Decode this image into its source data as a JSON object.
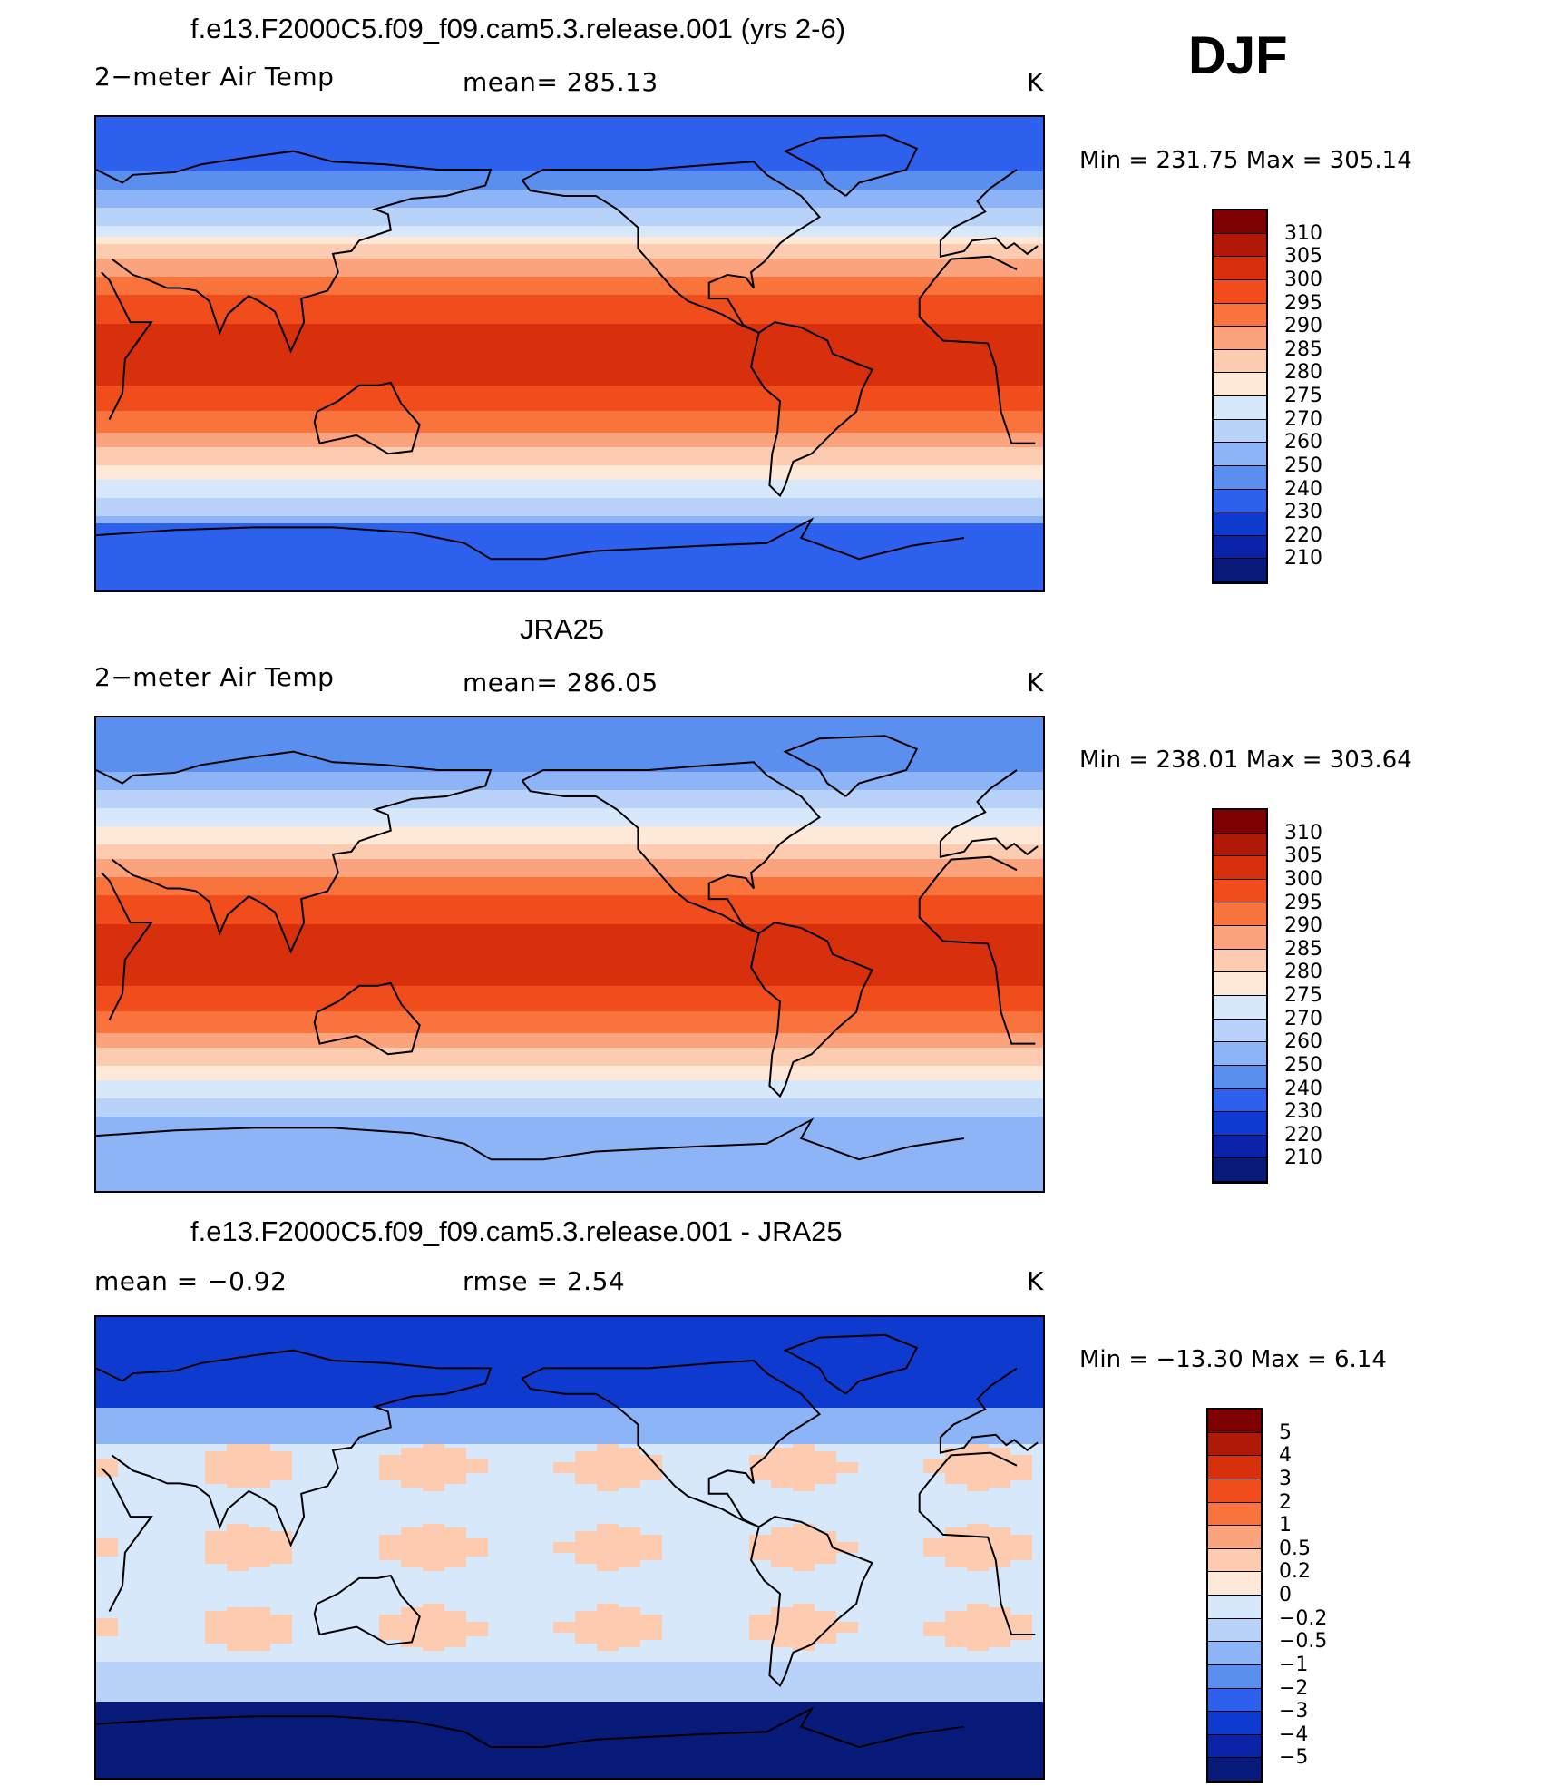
{
  "season": "DJF",
  "panels": [
    {
      "title": "f.e13.F2000C5.f09_f09.cam5.3.release.001 (yrs 2-6)",
      "left_label": "2−meter Air Temp",
      "center_label": "mean= 285.13",
      "units": "K",
      "minmax": "Min  =  231.75  Max  =  305.14",
      "colorbar": {
        "labels": [
          "310",
          "305",
          "300",
          "295",
          "290",
          "285",
          "280",
          "275",
          "270",
          "260",
          "250",
          "240",
          "230",
          "220",
          "210"
        ],
        "colors": [
          "#7f0000",
          "#b01808",
          "#d8300c",
          "#f04c1c",
          "#f8743c",
          "#fba37c",
          "#fdcbb0",
          "#fee8d8",
          "#d8e8fb",
          "#b8d2fa",
          "#8db4f6",
          "#5a8ff0",
          "#2d60ec",
          "#0f3ad0",
          "#0a23a8",
          "#081a7a"
        ]
      },
      "map_type": "model"
    },
    {
      "title": "JRA25",
      "left_label": "2−meter Air Temp",
      "center_label": "mean= 286.05",
      "units": "K",
      "minmax": "Min  =  238.01  Max  =  303.64",
      "colorbar": {
        "labels": [
          "310",
          "305",
          "300",
          "295",
          "290",
          "285",
          "280",
          "275",
          "270",
          "260",
          "250",
          "240",
          "230",
          "220",
          "210"
        ],
        "colors": [
          "#7f0000",
          "#b01808",
          "#d8300c",
          "#f04c1c",
          "#f8743c",
          "#fba37c",
          "#fdcbb0",
          "#fee8d8",
          "#d8e8fb",
          "#b8d2fa",
          "#8db4f6",
          "#5a8ff0",
          "#2d60ec",
          "#0f3ad0",
          "#0a23a8",
          "#081a7a"
        ]
      },
      "map_type": "obs"
    },
    {
      "title": "f.e13.F2000C5.f09_f09.cam5.3.release.001 - JRA25",
      "left_label": "mean =    −0.92",
      "center_label": "rmse =     2.54",
      "units": "K",
      "minmax": "Min  =  −13.30  Max  =      6.14",
      "colorbar": {
        "labels": [
          "5",
          "4",
          "3",
          "2",
          "1",
          "0.5",
          "0.2",
          "0",
          "−0.2",
          "−0.5",
          "−1",
          "−2",
          "−3",
          "−4",
          "−5"
        ],
        "colors": [
          "#7f0000",
          "#b01808",
          "#d8300c",
          "#f04c1c",
          "#f8743c",
          "#fba37c",
          "#fdcbb0",
          "#fee8d8",
          "#d8e8fb",
          "#b8d2fa",
          "#8db4f6",
          "#5a8ff0",
          "#2d60ec",
          "#0f3ad0",
          "#0a23a8",
          "#081a7a"
        ]
      },
      "map_type": "diff"
    }
  ]
}
